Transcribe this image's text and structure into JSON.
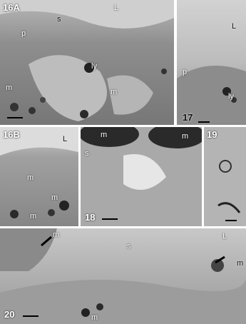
{
  "panels": [
    {
      "label": "16A",
      "annotations": [
        "L",
        "s",
        "p",
        "ly",
        "m",
        "m"
      ]
    },
    {
      "label": "17",
      "annotations": [
        "L",
        "p",
        "ly"
      ]
    },
    {
      "label": "16B",
      "annotations": [
        "L",
        "m",
        "m",
        "m"
      ]
    },
    {
      "label": "18",
      "annotations": [
        "m",
        "m",
        "s"
      ]
    },
    {
      "label": "19",
      "annotations": []
    },
    {
      "label": "20",
      "annotations": [
        "m",
        "s",
        "L",
        "m",
        "m"
      ]
    }
  ]
}
